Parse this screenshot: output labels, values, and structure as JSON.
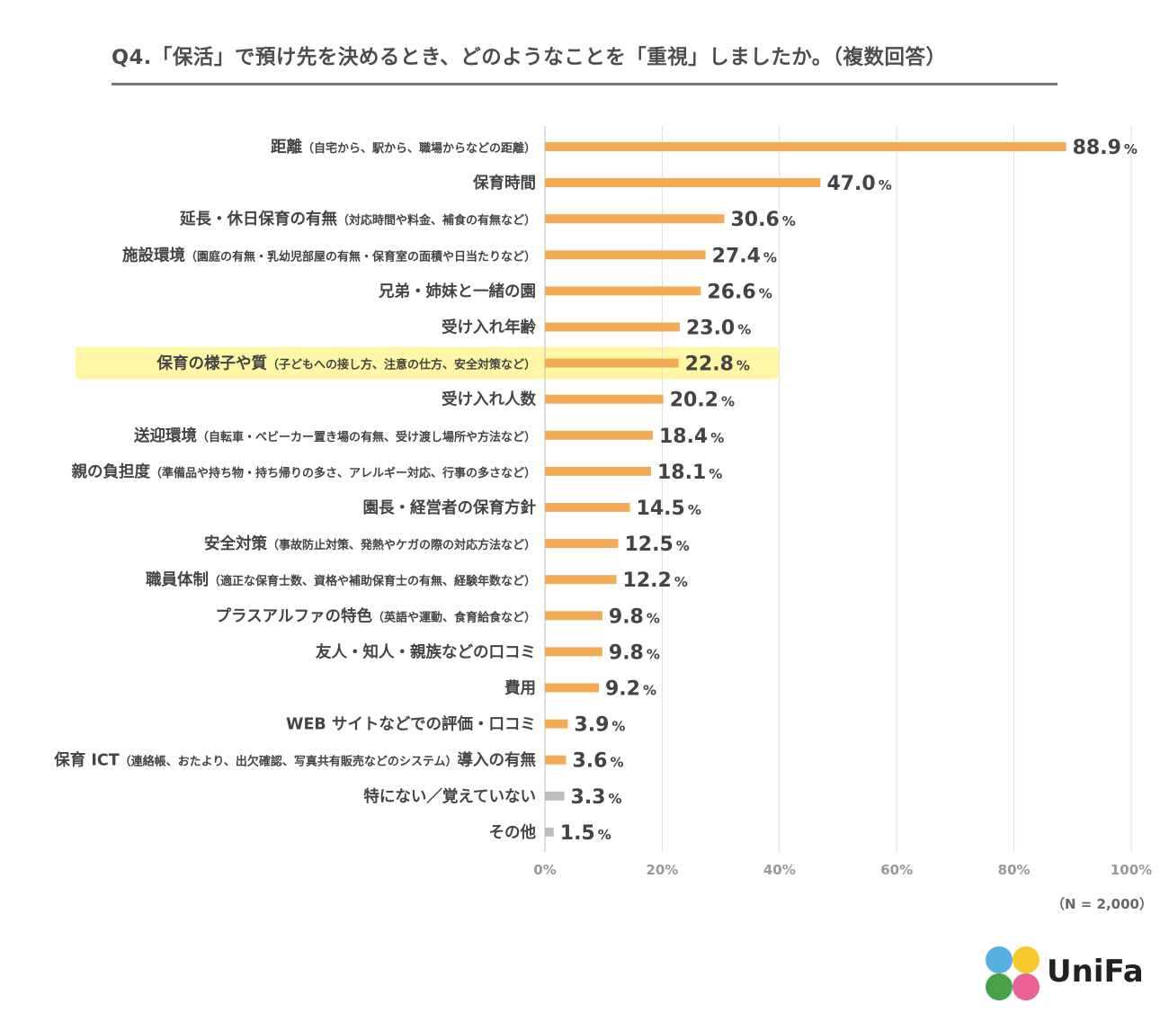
{
  "title": "Q4.「保活」で預け先を決めるとき、どのようなことを「重視」しましたか。（複数回答）",
  "note": "（N = 2,000）",
  "logo": {
    "text": "UniFa",
    "colors": [
      "#4aa8e0",
      "#f5c518",
      "#3a9a3a",
      "#e8558a"
    ]
  },
  "colors": {
    "bar": "#f3ac55",
    "bar_other": "#bdbdbd",
    "highlight": "#fff7a6",
    "grid": "#dddddd"
  },
  "chart_data": {
    "type": "bar",
    "orientation": "horizontal",
    "unit": "%",
    "xlim": [
      0,
      100
    ],
    "xticks": [
      "0%",
      "20%",
      "40%",
      "60%",
      "80%",
      "100%"
    ],
    "grid": true,
    "highlighted_category_index": 6,
    "categories": [
      {
        "main": "距離",
        "sub": "（自宅から、駅から、職場からなどの距離）"
      },
      {
        "main": "保育時間",
        "sub": ""
      },
      {
        "main": "延長・休日保育の有無",
        "sub": "（対応時間や料金、補食の有無など）"
      },
      {
        "main": "施設環境",
        "sub": "（園庭の有無・乳幼児部屋の有無・保育室の面積や日当たりなど）"
      },
      {
        "main": "兄弟・姉妹と一緒の園",
        "sub": ""
      },
      {
        "main": "受け入れ年齢",
        "sub": ""
      },
      {
        "main": "保育の様子や質",
        "sub": "（子どもへの接し方、注意の仕方、安全対策など）"
      },
      {
        "main": "受け入れ人数",
        "sub": ""
      },
      {
        "main": "送迎環境",
        "sub": "（自転車・ベビーカー置き場の有無、受け渡し場所や方法など）"
      },
      {
        "main": "親の負担度",
        "sub": "（準備品や持ち物・持ち帰りの多さ、アレルギー対応、行事の多さなど）"
      },
      {
        "main": "園長・経営者の保育方針",
        "sub": ""
      },
      {
        "main": "安全対策",
        "sub": "（事故防止対策、発熱やケガの際の対応方法など）"
      },
      {
        "main": "職員体制",
        "sub": "（適正な保育士数、資格や補助保育士の有無、経験年数など）"
      },
      {
        "main": "プラスアルファの特色",
        "sub": "（英語や運動、食育給食など）"
      },
      {
        "main": "友人・知人・親族などの口コミ",
        "sub": ""
      },
      {
        "main": "費用",
        "sub": ""
      },
      {
        "main": "WEB サイトなどでの評価・口コミ",
        "sub": ""
      },
      {
        "main": "保育 ICT",
        "sub": "（連絡帳、おたより、出欠確認、写真共有販売などのシステム）",
        "tail": "導入の有無"
      },
      {
        "main": "特にない／覚えていない",
        "sub": ""
      },
      {
        "main": "その他",
        "sub": ""
      }
    ],
    "values": [
      88.9,
      47.0,
      30.6,
      27.4,
      26.6,
      23.0,
      22.8,
      20.2,
      18.4,
      18.1,
      14.5,
      12.5,
      12.2,
      9.8,
      9.8,
      9.2,
      3.9,
      3.6,
      3.3,
      1.5
    ],
    "value_labels": [
      "88.9",
      "47.0",
      "30.6",
      "27.4",
      "26.6",
      "23.0",
      "22.8",
      "20.2",
      "18.4",
      "18.1",
      "14.5",
      "12.5",
      "12.2",
      "9.8",
      "9.8",
      "9.2",
      "3.9",
      "3.6",
      "3.3",
      "1.5"
    ],
    "bar_color_groups": [
      "orange",
      "orange",
      "orange",
      "orange",
      "orange",
      "orange",
      "orange",
      "orange",
      "orange",
      "orange",
      "orange",
      "orange",
      "orange",
      "orange",
      "orange",
      "orange",
      "orange",
      "orange",
      "gray",
      "gray"
    ]
  }
}
